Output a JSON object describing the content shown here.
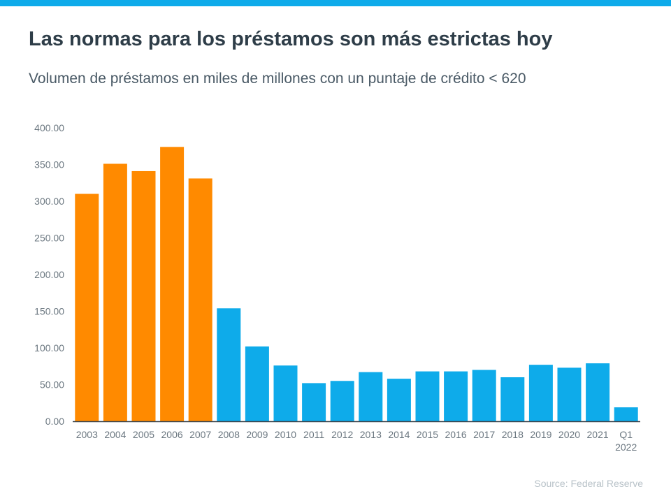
{
  "title": "Las normas para los préstamos son más estrictas hoy",
  "subtitle": "Volumen de préstamos en miles de millones con un puntaje de crédito < 620",
  "source": "Source: Federal Reserve",
  "colors": {
    "accent_bar": "#0eabea",
    "highlight": "#ff8a00",
    "top_band": "#0eabea"
  },
  "chart_data": {
    "type": "bar",
    "title": "",
    "xlabel": "",
    "ylabel": "",
    "ylim": [
      0,
      400
    ],
    "yticks": [
      "0.00",
      "50.00",
      "100.00",
      "150.00",
      "200.00",
      "250.00",
      "300.00",
      "350.00",
      "400.00"
    ],
    "grid": false,
    "categories": [
      "2003",
      "2004",
      "2005",
      "2006",
      "2007",
      "2008",
      "2009",
      "2010",
      "2011",
      "2012",
      "2013",
      "2014",
      "2015",
      "2016",
      "2017",
      "2018",
      "2019",
      "2020",
      "2021",
      "Q1 2022"
    ],
    "values": [
      310,
      351,
      341,
      374,
      331,
      154,
      102,
      76,
      52,
      55,
      67,
      58,
      68,
      68,
      70,
      60,
      77,
      73,
      79,
      19
    ],
    "bar_colors": [
      "#ff8a00",
      "#ff8a00",
      "#ff8a00",
      "#ff8a00",
      "#ff8a00",
      "#0eabea",
      "#0eabea",
      "#0eabea",
      "#0eabea",
      "#0eabea",
      "#0eabea",
      "#0eabea",
      "#0eabea",
      "#0eabea",
      "#0eabea",
      "#0eabea",
      "#0eabea",
      "#0eabea",
      "#0eabea",
      "#0eabea"
    ]
  }
}
